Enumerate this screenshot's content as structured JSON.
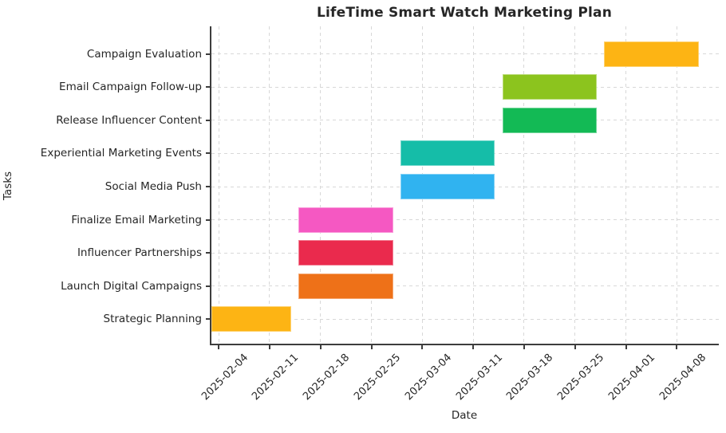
{
  "title": "LifeTime Smart Watch Marketing Plan",
  "chart_data": {
    "type": "bar",
    "subtype": "gantt-horizontal",
    "title": "LifeTime Smart Watch Marketing Plan",
    "xlabel": "Date",
    "ylabel": "Tasks",
    "grid": true,
    "grid_style": "dashed-lightgray",
    "legend": false,
    "x_tick_rotation": 45,
    "timeline": {
      "start": "2025-02-03",
      "end": "2025-04-14"
    },
    "x_ticks": [
      "2025-02-04",
      "2025-02-11",
      "2025-02-18",
      "2025-02-25",
      "2025-03-04",
      "2025-03-11",
      "2025-03-18",
      "2025-03-25",
      "2025-04-01",
      "2025-04-08"
    ],
    "tasks": [
      {
        "label": "Campaign Evaluation",
        "start": "2025-03-29",
        "end": "2025-04-11",
        "color": "#FDB414"
      },
      {
        "label": "Email Campaign Follow-up",
        "start": "2025-03-15",
        "end": "2025-03-28",
        "color": "#8CC41E"
      },
      {
        "label": "Release Influencer Content",
        "start": "2025-03-15",
        "end": "2025-03-28",
        "color": "#13BA55"
      },
      {
        "label": "Experiential Marketing Events",
        "start": "2025-03-01",
        "end": "2025-03-14",
        "color": "#15BDA8"
      },
      {
        "label": "Social Media Push",
        "start": "2025-03-01",
        "end": "2025-03-14",
        "color": "#30B3F0"
      },
      {
        "label": "Finalize Email Marketing",
        "start": "2025-02-15",
        "end": "2025-02-28",
        "color": "#F558C2"
      },
      {
        "label": "Influencer Partnerships",
        "start": "2025-02-15",
        "end": "2025-02-28",
        "color": "#EA2A4D"
      },
      {
        "label": "Launch Digital Campaigns",
        "start": "2025-02-15",
        "end": "2025-02-28",
        "color": "#EE7118"
      },
      {
        "label": "Strategic Planning",
        "start": "2025-02-03",
        "end": "2025-02-14",
        "color": "#FDB414"
      }
    ]
  }
}
